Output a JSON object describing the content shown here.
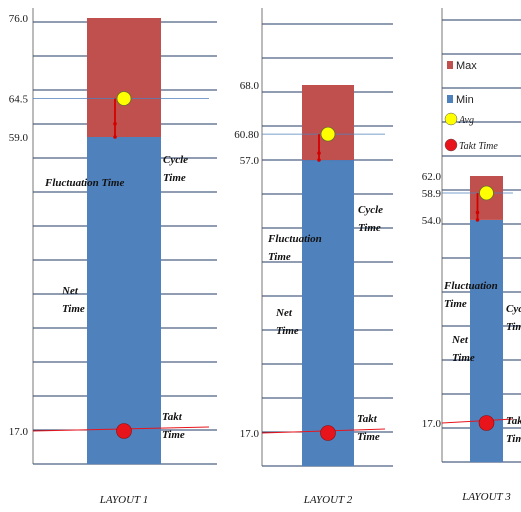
{
  "chart_data": [
    {
      "type": "bar",
      "xlabel": "LAYOUT 1",
      "stack": {
        "min": 59.0,
        "max": 76.0
      },
      "avg": 64.5,
      "takt": 17.0,
      "ytick_labels": [
        "76.0",
        "64.5",
        "59.0",
        "17.0"
      ],
      "annotations": {
        "fluctuation": "Fluctuation Time",
        "cycle": [
          "Cycle",
          "Time"
        ],
        "net": [
          "Net",
          "Time"
        ],
        "takt": [
          "Takt",
          "Time"
        ]
      }
    },
    {
      "type": "bar",
      "xlabel": "LAYOUT 2",
      "stack": {
        "min": 57.0,
        "max": 68.0
      },
      "avg": 60.8,
      "takt": 17.0,
      "ytick_labels": [
        "68.0",
        "60.80",
        "57.0",
        "17.0"
      ],
      "annotations": {
        "fluctuation": [
          "Fluctuation",
          "Time"
        ],
        "cycle": [
          "Cycle",
          "Time"
        ],
        "net": [
          "Net",
          "Time"
        ],
        "takt": [
          "Takt",
          "Time"
        ]
      }
    },
    {
      "type": "bar",
      "xlabel": "LAYOUT 3",
      "stack": {
        "min": 54.0,
        "max": 62.0
      },
      "avg": 58.9,
      "takt": 17.0,
      "ytick_labels": [
        "62.0",
        "58.9",
        "54.0",
        "17.0"
      ],
      "annotations": {
        "fluctuation": [
          "Fluctuation",
          "Time"
        ],
        "cycle": [
          "Cycle",
          "Time"
        ],
        "net": [
          "Net",
          "Time"
        ],
        "takt": [
          "Takt",
          "Time"
        ]
      }
    }
  ],
  "legend": [
    {
      "label": "Max",
      "color": "#c0504d",
      "marker": "square"
    },
    {
      "label": "Min",
      "color": "#4f81bd",
      "marker": "square"
    },
    {
      "label": "Avg",
      "color": "#ffff00",
      "marker": "circle"
    },
    {
      "label": "Takt Time",
      "color": "#e8141b",
      "marker": "circle"
    }
  ],
  "colors": {
    "max": "#c0504d",
    "min": "#4f81bd",
    "avg": "#ffff00",
    "takt": "#e8141b",
    "gridline": "#1f3864"
  }
}
